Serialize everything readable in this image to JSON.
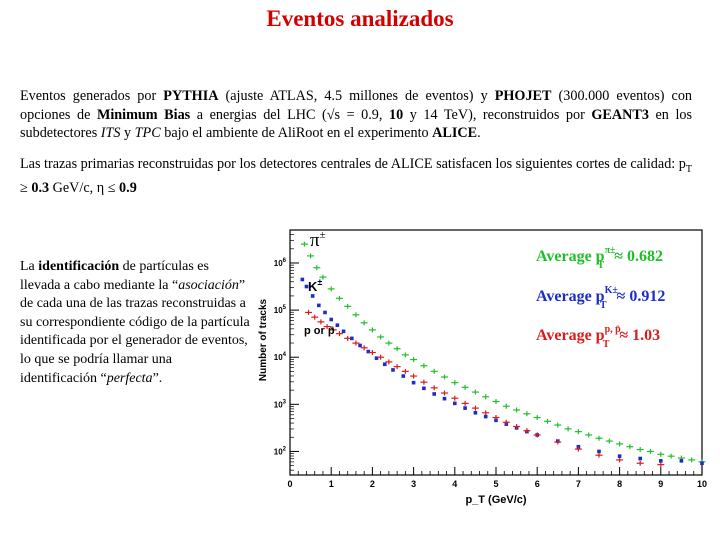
{
  "slide": {
    "title": "Eventos analizados",
    "p1": {
      "t1": "Eventos generados por ",
      "b1": "PYTHIA",
      "t2": " (ajuste ATLAS, 4.5 millones de eventos) y ",
      "b2": "PHOJET",
      "t3": " (300.000 eventos) con opciones de ",
      "b3": "Minimum Bias",
      "t4": " a energias del LHC (√s = 0.9, ",
      "b4": "10",
      "t5": " y 14 TeV), reconstruidos por ",
      "b5": "GEANT3",
      "t6": " en los subdetectores ",
      "i1": "ITS",
      "t7": " y ",
      "i2": "TPC",
      "t8": " bajo el ambiente de AliRoot en el experimento ",
      "b6": "ALICE",
      "t9": "."
    },
    "p2": {
      "t1": "Las trazas primarias reconstruidas por los detectores centrales de ALICE satisfacen los siguientes cortes de calidad: p",
      "sub": "T",
      "t2": " ≥ ",
      "b1": "0.3",
      "t3": " GeV/c, η ≤ ",
      "b2": "0.9"
    },
    "side": {
      "t1": "La ",
      "b1": "identificación",
      "t2": " de partículas es llevada a cabo mediante la “",
      "i1": "asociación",
      "t3": "” de cada una de las trazas reconstruidas a su correspondiente código de la partícula identificada por el generador de eventos, lo que se podría llamar una identificación “",
      "i2": "perfecta",
      "t4": "”."
    }
  },
  "chart_data": {
    "type": "scatter",
    "xlabel": "p_T (GeV/c)",
    "ylabel": "Number of tracks",
    "xlim": [
      0,
      10
    ],
    "ylim_log10": [
      1.5,
      6.7
    ],
    "log_y": true,
    "x_ticks": [
      "0",
      "1",
      "2",
      "3",
      "4",
      "5",
      "6",
      "7",
      "8",
      "9",
      "10"
    ],
    "y_ticks": [
      {
        "base": "10",
        "exp": "2",
        "value": 2
      },
      {
        "base": "10",
        "exp": "3",
        "value": 3
      },
      {
        "base": "10",
        "exp": "4",
        "value": 4
      },
      {
        "base": "10",
        "exp": "5",
        "value": 5
      },
      {
        "base": "10",
        "exp": "6",
        "value": 6
      }
    ],
    "plot_labels": {
      "pion": {
        "text": "π",
        "sup": "±"
      },
      "kaon": {
        "text": "K",
        "sup": "±"
      },
      "proton": {
        "text": "p or p̄"
      }
    },
    "averages": [
      {
        "text": "Average p",
        "sup": "π±",
        "sub": "T",
        "value": "≈ 0.682",
        "color": "#1fbf2b"
      },
      {
        "text": "Average p",
        "sup": "K±",
        "sub": "T",
        "value": "≈ 0.912",
        "color": "#1c2cc8"
      },
      {
        "text": "Average p",
        "sup": "p, p̄",
        "sub": "T",
        "value": "≈ 1.03",
        "color": "#dd1b1b"
      }
    ],
    "series": [
      {
        "name": "π±",
        "color": "#1fbf2b",
        "marker": "+",
        "x": [
          0.35,
          0.5,
          0.65,
          0.8,
          1.0,
          1.2,
          1.4,
          1.6,
          1.8,
          2.0,
          2.2,
          2.4,
          2.6,
          2.8,
          3.0,
          3.25,
          3.5,
          3.75,
          4.0,
          4.25,
          4.5,
          4.75,
          5.0,
          5.25,
          5.5,
          5.75,
          6.0,
          6.25,
          6.5,
          6.75,
          7.0,
          7.25,
          7.5,
          7.75,
          8.0,
          8.25,
          8.5,
          8.75,
          9.0,
          9.25,
          9.5,
          9.75,
          10.0
        ],
        "logy": [
          6.4,
          6.15,
          5.9,
          5.7,
          5.45,
          5.25,
          5.08,
          4.9,
          4.73,
          4.58,
          4.43,
          4.3,
          4.18,
          4.05,
          3.95,
          3.82,
          3.7,
          3.58,
          3.46,
          3.36,
          3.26,
          3.16,
          3.06,
          2.96,
          2.88,
          2.8,
          2.72,
          2.64,
          2.56,
          2.48,
          2.42,
          2.35,
          2.28,
          2.22,
          2.16,
          2.1,
          2.04,
          2.0,
          1.94,
          1.9,
          1.86,
          1.82,
          1.78
        ]
      },
      {
        "name": "K±",
        "color": "#1c2cc8",
        "marker": "dot",
        "x": [
          0.3,
          0.4,
          0.55,
          0.7,
          0.85,
          1.0,
          1.15,
          1.3,
          1.5,
          1.7,
          1.9,
          2.1,
          2.3,
          2.5,
          2.75,
          3.0,
          3.25,
          3.5,
          3.75,
          4.0,
          4.25,
          4.5,
          4.75,
          5.0,
          5.25,
          5.5,
          5.75,
          6.0,
          6.5,
          7.0,
          7.5,
          8.0,
          8.5,
          9.0,
          9.5,
          10.0
        ],
        "logy": [
          5.65,
          5.5,
          5.3,
          5.1,
          4.95,
          4.8,
          4.68,
          4.55,
          4.4,
          4.25,
          4.12,
          3.98,
          3.85,
          3.73,
          3.6,
          3.46,
          3.34,
          3.22,
          3.12,
          3.02,
          2.92,
          2.82,
          2.74,
          2.66,
          2.58,
          2.5,
          2.42,
          2.35,
          2.22,
          2.1,
          2.0,
          1.9,
          1.85,
          1.8,
          1.8,
          1.75
        ]
      },
      {
        "name": "p or p̄",
        "color": "#dd1b1b",
        "marker": "+",
        "x": [
          0.45,
          0.6,
          0.75,
          0.9,
          1.05,
          1.2,
          1.4,
          1.6,
          1.8,
          2.0,
          2.2,
          2.4,
          2.6,
          2.8,
          3.0,
          3.25,
          3.5,
          3.75,
          4.0,
          4.25,
          4.5,
          4.75,
          5.0,
          5.25,
          5.5,
          5.75,
          6.0,
          6.5,
          7.0,
          7.5,
          8.0,
          8.5,
          9.0
        ],
        "logy": [
          4.95,
          4.85,
          4.75,
          4.65,
          4.58,
          4.5,
          4.4,
          4.3,
          4.2,
          4.1,
          4.0,
          3.9,
          3.8,
          3.7,
          3.6,
          3.47,
          3.35,
          3.24,
          3.13,
          3.02,
          2.92,
          2.82,
          2.72,
          2.62,
          2.53,
          2.44,
          2.35,
          2.2,
          2.05,
          1.92,
          1.82,
          1.75,
          1.72
        ]
      }
    ]
  }
}
